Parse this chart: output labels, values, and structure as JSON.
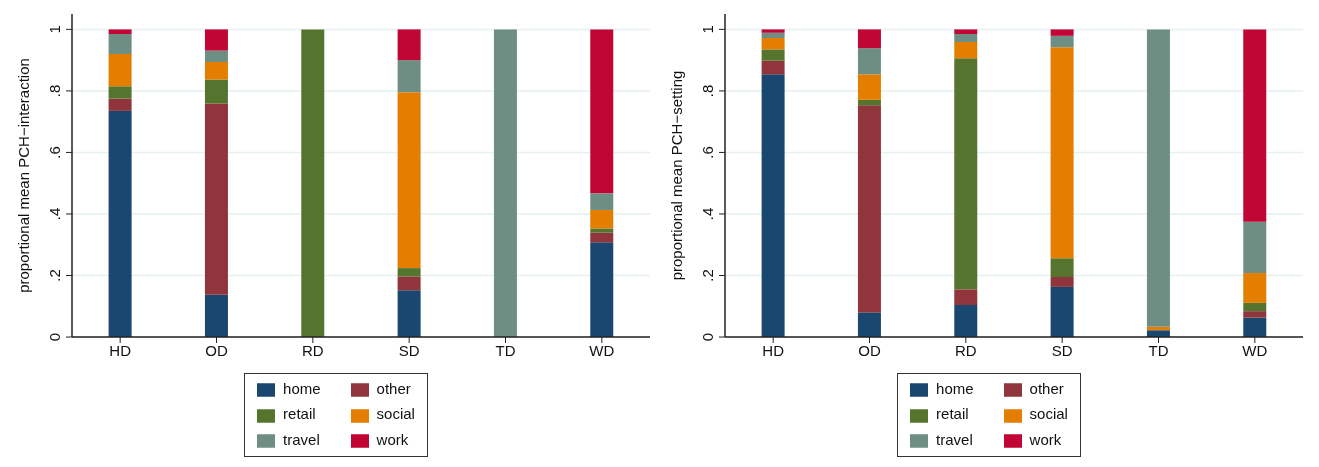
{
  "chart_data": [
    {
      "type": "bar",
      "stacked": true,
      "ylabel": "proportional mean PCH−interaction",
      "categories": [
        "HD",
        "OD",
        "RD",
        "SD",
        "TD",
        "WD"
      ],
      "ylim": [
        0,
        1.05
      ],
      "yticks": [
        {
          "value": 0,
          "label": "0"
        },
        {
          "value": 0.2,
          "label": ".2"
        },
        {
          "value": 0.4,
          "label": ".4"
        },
        {
          "value": 0.6,
          "label": ".6"
        },
        {
          "value": 0.8,
          "label": ".8"
        },
        {
          "value": 1,
          "label": "1"
        }
      ],
      "grid": "y",
      "legend": "bottom",
      "series": [
        {
          "name": "home",
          "color": "#1a476f",
          "values": [
            0.735,
            0.137,
            0,
            0.152,
            0,
            0.308
          ]
        },
        {
          "name": "other",
          "color": "#90353b",
          "values": [
            0.04,
            0.622,
            0,
            0.045,
            0,
            0.031
          ]
        },
        {
          "name": "retail",
          "color": "#55752f",
          "values": [
            0.04,
            0.078,
            1,
            0.027,
            0,
            0.014
          ]
        },
        {
          "name": "social",
          "color": "#e37e00",
          "values": [
            0.105,
            0.057,
            0,
            0.572,
            0,
            0.06
          ]
        },
        {
          "name": "travel",
          "color": "#6e8e84",
          "values": [
            0.065,
            0.037,
            0,
            0.104,
            1,
            0.054
          ]
        },
        {
          "name": "work",
          "color": "#c10534",
          "values": [
            0.015,
            0.069,
            0,
            0.1,
            0,
            0.533
          ]
        }
      ]
    },
    {
      "type": "bar",
      "stacked": true,
      "ylabel": "proportional mean PCH−setting",
      "categories": [
        "HD",
        "OD",
        "RD",
        "SD",
        "TD",
        "WD"
      ],
      "ylim": [
        0,
        1.05
      ],
      "yticks": [
        {
          "value": 0,
          "label": "0"
        },
        {
          "value": 0.2,
          "label": ".2"
        },
        {
          "value": 0.4,
          "label": ".4"
        },
        {
          "value": 0.6,
          "label": ".6"
        },
        {
          "value": 0.8,
          "label": ".8"
        },
        {
          "value": 1,
          "label": "1"
        }
      ],
      "grid": "y",
      "legend": "bottom",
      "series": [
        {
          "name": "home",
          "color": "#1a476f",
          "values": [
            0.854,
            0.08,
            0.104,
            0.163,
            0.022,
            0.063
          ]
        },
        {
          "name": "other",
          "color": "#90353b",
          "values": [
            0.044,
            0.673,
            0.051,
            0.032,
            0,
            0.021
          ]
        },
        {
          "name": "retail",
          "color": "#55752f",
          "values": [
            0.037,
            0.018,
            0.751,
            0.061,
            0,
            0.027
          ]
        },
        {
          "name": "social",
          "color": "#e37e00",
          "values": [
            0.037,
            0.083,
            0.053,
            0.686,
            0.011,
            0.097
          ]
        },
        {
          "name": "travel",
          "color": "#6e8e84",
          "values": [
            0.017,
            0.085,
            0.026,
            0.037,
            0.967,
            0.167
          ]
        },
        {
          "name": "work",
          "color": "#c10534",
          "values": [
            0.011,
            0.061,
            0.015,
            0.021,
            0,
            0.625
          ]
        }
      ]
    }
  ]
}
